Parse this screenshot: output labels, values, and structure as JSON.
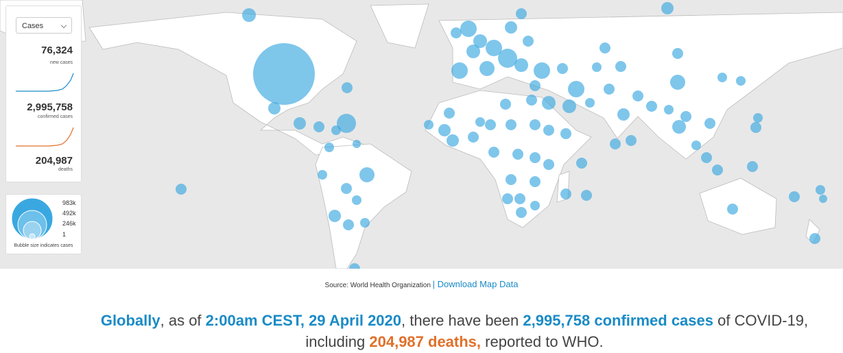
{
  "selector": {
    "label": "Cases"
  },
  "stats": [
    {
      "value": "76,324",
      "label": "new cases"
    },
    {
      "value": "2,995,758",
      "label": "confirmed cases"
    },
    {
      "value": "204,987",
      "label": "deaths"
    }
  ],
  "legend": {
    "sizes": [
      "983k",
      "492k",
      "246k",
      "1"
    ],
    "caption": "Bubble size indicates cases"
  },
  "source": {
    "label": "Source:",
    "text": "World Health Organization",
    "link": "| Download Map Data"
  },
  "summary": [
    "Globally",
    ", as of ",
    "2:00am CEST, 29 April 2020",
    ", there have been ",
    "2,995,758 confirmed cases",
    " of COVID-19, including ",
    "204,987 deaths,",
    " reported to WHO."
  ]
}
